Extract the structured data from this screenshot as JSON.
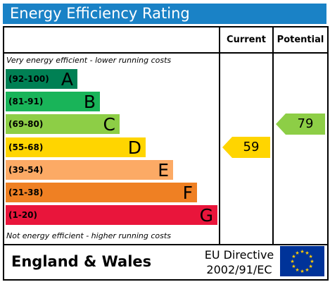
{
  "title": "Energy Efficiency Rating",
  "columns": {
    "current": "Current",
    "potential": "Potential"
  },
  "notes": {
    "top": "Very energy efficient - lower running costs",
    "bottom": "Not energy efficient - higher running costs"
  },
  "bands": [
    {
      "range": "(92-100)",
      "letter": "A",
      "color": "#008054"
    },
    {
      "range": "(81-91)",
      "letter": "B",
      "color": "#19b459"
    },
    {
      "range": "(69-80)",
      "letter": "C",
      "color": "#8dce46"
    },
    {
      "range": "(55-68)",
      "letter": "D",
      "color": "#ffd500"
    },
    {
      "range": "(39-54)",
      "letter": "E",
      "color": "#fcaa65"
    },
    {
      "range": "(21-38)",
      "letter": "F",
      "color": "#ef8023"
    },
    {
      "range": "(1-20)",
      "letter": "G",
      "color": "#e9153b"
    }
  ],
  "ratings": {
    "current": {
      "value": "59",
      "band": "D",
      "color": "#ffd500"
    },
    "potential": {
      "value": "79",
      "band": "C",
      "color": "#8dce46"
    }
  },
  "footer": {
    "region": "England & Wales",
    "directive_line1": "EU Directive",
    "directive_line2": "2002/91/EC",
    "flag_icon": "eu-flag-icon"
  }
}
